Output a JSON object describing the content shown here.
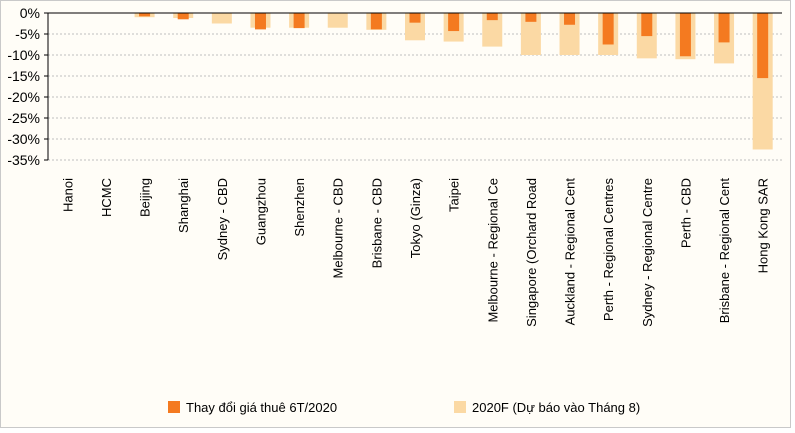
{
  "chart_data": {
    "type": "bar",
    "categories": [
      "Hanoi",
      "HCMC",
      "Beijing",
      "Shanghai",
      "Sydney - CBD",
      "Guangzhou",
      "Shenzhen",
      "Melbourne - CBD",
      "Brisbane - CBD",
      "Tokyo (Ginza)",
      "Taipei",
      "Melbourne - Regional Ce",
      "Singapore (Orchard Road",
      "Auckland - Regional Cent",
      "Perth - Regional Centres",
      "Sydney - Regional Centre",
      "Perth - CBD",
      "Brisbane - Regional Cent",
      "Hong Kong SAR"
    ],
    "series": [
      {
        "name": "Thay đổi giá thuê 6T/2020",
        "color": "#f47a20",
        "values": [
          0,
          0,
          -0.8,
          -1.5,
          0,
          -3.9,
          -3.6,
          0,
          -3.9,
          -2.3,
          -4.3,
          -1.7,
          -2.1,
          -2.8,
          -7.5,
          -5.5,
          -10.3,
          -7.0,
          -15.5
        ]
      },
      {
        "name": "2020F (Dự báo vào Tháng 8)",
        "color": "#fbd9a4",
        "values": [
          0,
          0,
          -1.0,
          -1.2,
          -2.5,
          -3.5,
          -3.5,
          -3.5,
          -4.0,
          -6.5,
          -6.8,
          -8.0,
          -10.0,
          -10.0,
          -10.0,
          -10.8,
          -11.0,
          -12.0,
          -32.5
        ]
      }
    ],
    "ylim": [
      -35,
      0
    ],
    "yticks": [
      "0%",
      "-5%",
      "-10%",
      "-15%",
      "-20%",
      "-25%",
      "-30%",
      "-35%"
    ],
    "grid": true,
    "legend": "bottom"
  }
}
